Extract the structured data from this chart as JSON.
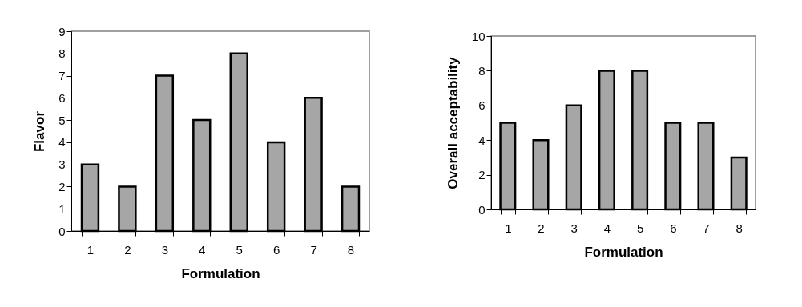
{
  "chart_data": [
    {
      "type": "bar",
      "xlabel": "Formulation",
      "ylabel": "Flavor",
      "categories": [
        "1",
        "2",
        "3",
        "4",
        "5",
        "6",
        "7",
        "8"
      ],
      "values": [
        3,
        2,
        7,
        5,
        8,
        4,
        6,
        2
      ],
      "color": "#a6a6a6",
      "ylim": [
        0,
        9
      ],
      "yticks": [
        0,
        1,
        2,
        3,
        4,
        5,
        6,
        7,
        8,
        9
      ],
      "grid": false
    },
    {
      "type": "bar",
      "xlabel": "Formulation",
      "ylabel": "Overall acceptability",
      "categories": [
        "1",
        "2",
        "3",
        "4",
        "5",
        "6",
        "7",
        "8"
      ],
      "values": [
        5,
        4,
        6,
        8,
        8,
        5,
        5,
        3
      ],
      "color": "#a6a6a6",
      "ylim": [
        0,
        10
      ],
      "yticks": [
        0,
        2,
        4,
        6,
        8,
        10
      ],
      "grid": false
    }
  ]
}
